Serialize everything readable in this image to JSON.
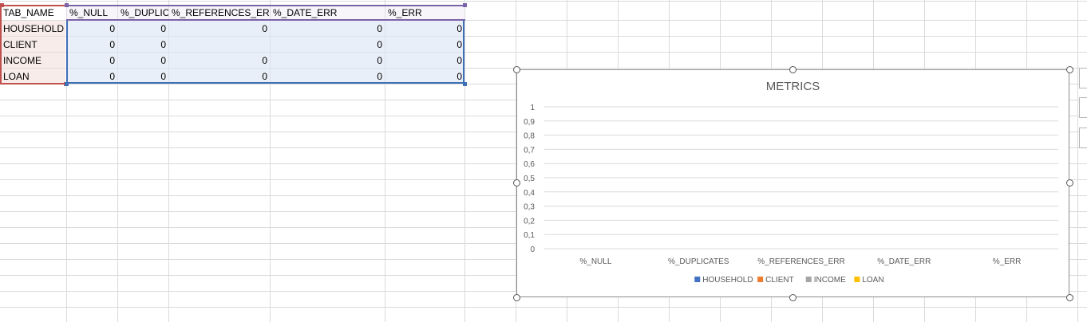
{
  "table": {
    "headers": [
      "TAB_NAME",
      "%_NULL",
      "%_DUPLIC",
      "%_REFERENCES_ERR",
      "%_DATE_ERR",
      "%_ERR"
    ],
    "rows": [
      {
        "name": "HOUSEHOLD",
        "null": "0",
        "dup": "0",
        "ref": "0",
        "date": "0",
        "err": "0"
      },
      {
        "name": "CLIENT",
        "null": "0",
        "dup": "0",
        "ref": "",
        "date": "0",
        "err": "0"
      },
      {
        "name": "INCOME",
        "null": "0",
        "dup": "0",
        "ref": "0",
        "date": "0",
        "err": "0"
      },
      {
        "name": "LOAN",
        "null": "0",
        "dup": "0",
        "ref": "0",
        "date": "0",
        "err": "0"
      }
    ]
  },
  "chart_data": {
    "type": "bar",
    "title": "METRICS",
    "categories": [
      "%_NULL",
      "%_DUPLICATES",
      "%_REFERENCES_ERR",
      "%_DATE_ERR",
      "%_ERR"
    ],
    "series": [
      {
        "name": "HOUSEHOLD",
        "values": [
          0,
          0,
          0,
          0,
          0
        ],
        "color": "#4472c4"
      },
      {
        "name": "CLIENT",
        "values": [
          0,
          0,
          0,
          0,
          0
        ],
        "color": "#ed7d31"
      },
      {
        "name": "INCOME",
        "values": [
          0,
          0,
          0,
          0,
          0
        ],
        "color": "#a5a5a5"
      },
      {
        "name": "LOAN",
        "values": [
          0,
          0,
          0,
          0,
          0
        ],
        "color": "#ffc000"
      }
    ],
    "ylim": [
      0,
      1
    ],
    "yticks": [
      "0",
      "0,1",
      "0,2",
      "0,3",
      "0,4",
      "0,5",
      "0,6",
      "0,7",
      "0,8",
      "0,9",
      "1"
    ],
    "legend": "bottom",
    "grid": true
  }
}
